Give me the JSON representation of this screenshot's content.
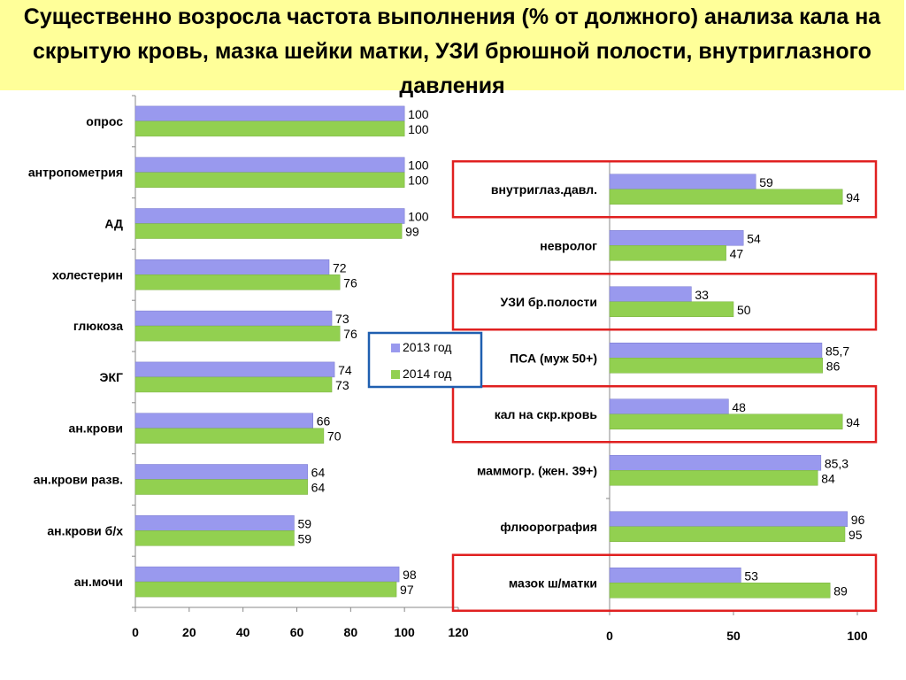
{
  "title": "Существенно возросла частота выполнения (% от должного) анализа кала на скрытую кровь, мазка шейки матки, УЗИ брюшной полости, внутриглазного давления",
  "colors": {
    "title_bg": "#ffff99",
    "series_2013": "#9999ee",
    "series_2014": "#92d050",
    "legend_border": "#1f5fb0",
    "highlight_border": "#e02020"
  },
  "chart_data": [
    {
      "type": "bar",
      "orientation": "horizontal",
      "categories": [
        "опрос",
        "антропометрия",
        "АД",
        "холестерин",
        "глюкоза",
        "ЭКГ",
        "ан.крови",
        "ан.крови разв.",
        "ан.крови б/х",
        "ан.мочи"
      ],
      "series": [
        {
          "name": "2013 год",
          "values": [
            100,
            100,
            100,
            72,
            73,
            74,
            66,
            64,
            59,
            98
          ]
        },
        {
          "name": "2014 год",
          "values": [
            100,
            100,
            99,
            76,
            76,
            73,
            70,
            64,
            59,
            97
          ]
        }
      ],
      "value_labels_2013": [
        "100",
        "100",
        "100",
        "72",
        "73",
        "74",
        "66",
        "64",
        "59",
        "98"
      ],
      "value_labels_2014": [
        "100",
        "100",
        "99",
        "76",
        "76",
        "73",
        "70",
        "64",
        "59",
        "97"
      ],
      "xlim": [
        0,
        120
      ],
      "xticks": [
        "0",
        "20",
        "40",
        "60",
        "80",
        "100",
        "120"
      ],
      "legend": {
        "entries": [
          "2013 год",
          "2014 год"
        ],
        "placement": "center"
      }
    },
    {
      "type": "bar",
      "orientation": "horizontal",
      "categories": [
        "внутриглаз.давл.",
        "невролог",
        "УЗИ бр.полости",
        "ПСА (муж 50+)",
        "кал на скр.кровь",
        "маммогр. (жен. 39+)",
        "флюорография",
        "мазок ш/матки"
      ],
      "series": [
        {
          "name": "2013 год",
          "values": [
            59,
            54,
            33,
            85.7,
            48,
            85.3,
            96,
            53
          ]
        },
        {
          "name": "2014 год",
          "values": [
            94,
            47,
            50,
            86,
            94,
            84,
            95,
            89
          ]
        }
      ],
      "value_labels_2013": [
        "59",
        "54",
        "33",
        "85,7",
        "48",
        "85,3",
        "96",
        "53"
      ],
      "value_labels_2014": [
        "94",
        "47",
        "50",
        "86",
        "94",
        "84",
        "95",
        "89"
      ],
      "highlighted_categories": [
        "внутриглаз.давл.",
        "УЗИ бр.полости",
        "кал на скр.кровь",
        "мазок ш/матки"
      ],
      "xlim": [
        0,
        100
      ],
      "xticks": [
        "0",
        "50",
        "100"
      ]
    }
  ]
}
